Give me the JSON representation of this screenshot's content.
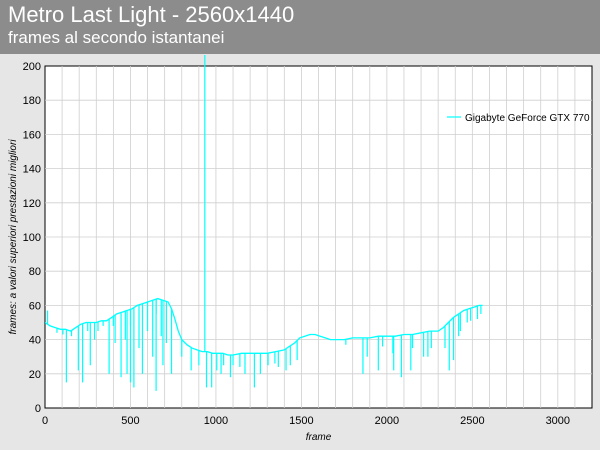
{
  "chart_data": {
    "type": "line",
    "title": "Metro Last Light - 2560x1440",
    "subtitle": "frames al secondo istantanei",
    "xlabel": "frame",
    "ylabel": "frames: a valori superiori prestazioni migliori",
    "xlim": [
      0,
      3200
    ],
    "ylim": [
      0,
      200
    ],
    "xticks": [
      0,
      500,
      1000,
      1500,
      2000,
      2500,
      3000
    ],
    "yticks": [
      0,
      20,
      40,
      60,
      80,
      100,
      120,
      140,
      160,
      180,
      200
    ],
    "x_minor_step": 100,
    "grid": true,
    "legend_position": "top-right",
    "series": [
      {
        "name": "Gigabyte GeForce GTX 770",
        "color": "#00ffff",
        "points": [
          [
            0,
            50
          ],
          [
            30,
            48
          ],
          [
            60,
            47
          ],
          [
            90,
            46
          ],
          [
            120,
            46
          ],
          [
            150,
            45
          ],
          [
            180,
            47
          ],
          [
            210,
            49
          ],
          [
            240,
            50
          ],
          [
            270,
            50
          ],
          [
            300,
            50
          ],
          [
            330,
            51
          ],
          [
            360,
            51
          ],
          [
            390,
            53
          ],
          [
            420,
            55
          ],
          [
            450,
            56
          ],
          [
            480,
            57
          ],
          [
            510,
            58
          ],
          [
            540,
            60
          ],
          [
            570,
            61
          ],
          [
            600,
            62
          ],
          [
            630,
            63
          ],
          [
            660,
            64
          ],
          [
            690,
            63
          ],
          [
            720,
            62
          ],
          [
            740,
            58
          ],
          [
            760,
            52
          ],
          [
            780,
            45
          ],
          [
            800,
            40
          ],
          [
            830,
            37
          ],
          [
            860,
            35
          ],
          [
            890,
            34
          ],
          [
            920,
            33
          ],
          [
            950,
            33
          ],
          [
            980,
            32
          ],
          [
            1010,
            32
          ],
          [
            1040,
            32
          ],
          [
            1070,
            31
          ],
          [
            1100,
            31
          ],
          [
            1150,
            32
          ],
          [
            1200,
            32
          ],
          [
            1250,
            32
          ],
          [
            1300,
            32
          ],
          [
            1350,
            33
          ],
          [
            1400,
            34
          ],
          [
            1430,
            36
          ],
          [
            1460,
            38
          ],
          [
            1490,
            41
          ],
          [
            1520,
            42
          ],
          [
            1550,
            43
          ],
          [
            1580,
            43
          ],
          [
            1610,
            42
          ],
          [
            1640,
            41
          ],
          [
            1670,
            40
          ],
          [
            1700,
            40
          ],
          [
            1750,
            40
          ],
          [
            1800,
            41
          ],
          [
            1850,
            41
          ],
          [
            1900,
            41
          ],
          [
            1950,
            42
          ],
          [
            2000,
            42
          ],
          [
            2050,
            42
          ],
          [
            2100,
            43
          ],
          [
            2150,
            43
          ],
          [
            2200,
            44
          ],
          [
            2250,
            45
          ],
          [
            2300,
            45
          ],
          [
            2330,
            47
          ],
          [
            2360,
            50
          ],
          [
            2390,
            53
          ],
          [
            2420,
            55
          ],
          [
            2450,
            57
          ],
          [
            2480,
            58
          ],
          [
            2510,
            59
          ],
          [
            2540,
            60
          ],
          [
            2560,
            60
          ]
        ],
        "dips": [
          [
            15,
            57
          ],
          [
            70,
            44
          ],
          [
            105,
            43
          ],
          [
            125,
            15
          ],
          [
            155,
            42
          ],
          [
            195,
            22
          ],
          [
            220,
            15
          ],
          [
            250,
            45
          ],
          [
            265,
            25
          ],
          [
            290,
            40
          ],
          [
            310,
            45
          ],
          [
            340,
            48
          ],
          [
            375,
            20
          ],
          [
            400,
            48
          ],
          [
            410,
            38
          ],
          [
            445,
            18
          ],
          [
            470,
            40
          ],
          [
            480,
            20
          ],
          [
            500,
            48
          ],
          [
            500,
            15
          ],
          [
            520,
            12
          ],
          [
            550,
            35
          ],
          [
            570,
            20
          ],
          [
            600,
            45
          ],
          [
            630,
            30
          ],
          [
            650,
            55
          ],
          [
            650,
            10
          ],
          [
            680,
            42
          ],
          [
            690,
            25
          ],
          [
            710,
            38
          ],
          [
            740,
            20
          ],
          [
            800,
            30
          ],
          [
            855,
            22
          ],
          [
            900,
            25
          ],
          [
            935,
            210
          ],
          [
            945,
            12
          ],
          [
            975,
            12
          ],
          [
            1005,
            22
          ],
          [
            1030,
            20
          ],
          [
            1045,
            25
          ],
          [
            1085,
            18
          ],
          [
            1100,
            25
          ],
          [
            1140,
            24
          ],
          [
            1170,
            20
          ],
          [
            1225,
            12
          ],
          [
            1260,
            20
          ],
          [
            1305,
            25
          ],
          [
            1345,
            26
          ],
          [
            1365,
            24
          ],
          [
            1410,
            22
          ],
          [
            1435,
            25
          ],
          [
            1475,
            28
          ],
          [
            1760,
            37
          ],
          [
            1860,
            20
          ],
          [
            1885,
            30
          ],
          [
            1950,
            22
          ],
          [
            1975,
            36
          ],
          [
            2035,
            32
          ],
          [
            2040,
            22
          ],
          [
            2085,
            18
          ],
          [
            2140,
            22
          ],
          [
            2150,
            35
          ],
          [
            2215,
            30
          ],
          [
            2240,
            30
          ],
          [
            2260,
            35
          ],
          [
            2340,
            35
          ],
          [
            2365,
            22
          ],
          [
            2390,
            28
          ],
          [
            2420,
            42
          ],
          [
            2430,
            45
          ],
          [
            2470,
            50
          ],
          [
            2490,
            51
          ],
          [
            2530,
            52
          ],
          [
            2550,
            55
          ]
        ]
      }
    ]
  }
}
